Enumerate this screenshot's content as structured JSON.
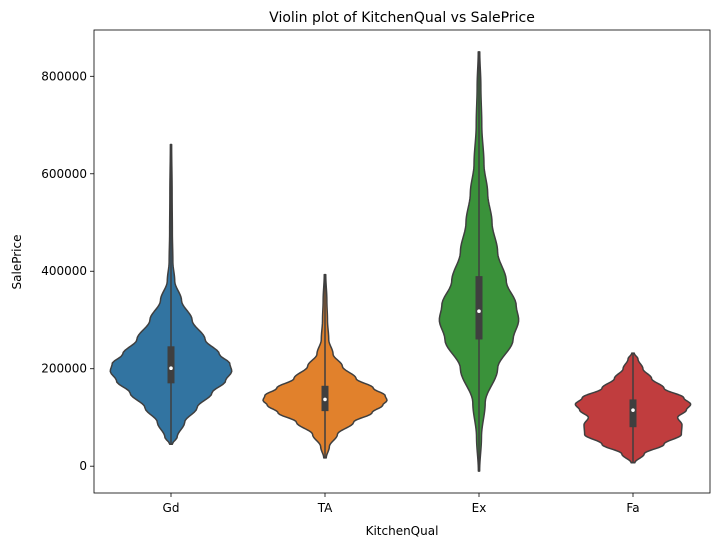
{
  "chart_data": {
    "type": "violin",
    "title": "Violin plot of KitchenQual vs SalePrice",
    "xlabel": "KitchenQual",
    "ylabel": "SalePrice",
    "categories": [
      "Gd",
      "TA",
      "Ex",
      "Fa"
    ],
    "colors": [
      "#3274a1",
      "#e1812c",
      "#3a923a",
      "#c03d3e"
    ],
    "ylim": [
      -55000,
      895000
    ],
    "yticks": [
      0,
      200000,
      400000,
      600000,
      800000
    ],
    "ytick_labels": [
      "0",
      "200000",
      "400000",
      "600000",
      "800000"
    ],
    "grid": false,
    "violins": [
      {
        "category": "Gd",
        "min": 45000,
        "q1": 170000,
        "median": 201000,
        "q3": 246000,
        "max": 660000,
        "profile": [
          [
            45000,
            0.02
          ],
          [
            60000,
            0.1
          ],
          [
            90000,
            0.22
          ],
          [
            120000,
            0.42
          ],
          [
            150000,
            0.66
          ],
          [
            175000,
            0.88
          ],
          [
            195000,
            0.98
          ],
          [
            210000,
            0.95
          ],
          [
            230000,
            0.78
          ],
          [
            260000,
            0.55
          ],
          [
            300000,
            0.34
          ],
          [
            340000,
            0.17
          ],
          [
            380000,
            0.06
          ],
          [
            420000,
            0.03
          ],
          [
            480000,
            0.022
          ],
          [
            560000,
            0.018
          ],
          [
            660000,
            0.01
          ]
        ]
      },
      {
        "category": "TA",
        "min": 17000,
        "q1": 113000,
        "median": 137000,
        "q3": 165000,
        "max": 393000,
        "profile": [
          [
            17000,
            0.02
          ],
          [
            40000,
            0.07
          ],
          [
            65000,
            0.2
          ],
          [
            90000,
            0.46
          ],
          [
            110000,
            0.76
          ],
          [
            125000,
            0.93
          ],
          [
            135000,
            1.0
          ],
          [
            145000,
            0.97
          ],
          [
            160000,
            0.78
          ],
          [
            180000,
            0.5
          ],
          [
            205000,
            0.28
          ],
          [
            230000,
            0.13
          ],
          [
            260000,
            0.06
          ],
          [
            300000,
            0.04
          ],
          [
            340000,
            0.03
          ],
          [
            393000,
            0.012
          ]
        ]
      },
      {
        "category": "Ex",
        "min": -10000,
        "q1": 260000,
        "median": 318000,
        "q3": 390000,
        "max": 850000,
        "profile": [
          [
            -10000,
            0.01
          ],
          [
            60000,
            0.04
          ],
          [
            130000,
            0.1
          ],
          [
            200000,
            0.3
          ],
          [
            260000,
            0.55
          ],
          [
            300000,
            0.64
          ],
          [
            330000,
            0.6
          ],
          [
            380000,
            0.44
          ],
          [
            440000,
            0.3
          ],
          [
            500000,
            0.21
          ],
          [
            560000,
            0.14
          ],
          [
            620000,
            0.08
          ],
          [
            700000,
            0.045
          ],
          [
            780000,
            0.03
          ],
          [
            850000,
            0.012
          ]
        ]
      },
      {
        "category": "Fa",
        "min": 7000,
        "q1": 80000,
        "median": 115000,
        "q3": 137000,
        "max": 232000,
        "profile": [
          [
            7000,
            0.03
          ],
          [
            25000,
            0.18
          ],
          [
            45000,
            0.5
          ],
          [
            65000,
            0.78
          ],
          [
            85000,
            0.79
          ],
          [
            100000,
            0.72
          ],
          [
            115000,
            0.86
          ],
          [
            127000,
            0.93
          ],
          [
            140000,
            0.82
          ],
          [
            160000,
            0.5
          ],
          [
            180000,
            0.3
          ],
          [
            200000,
            0.16
          ],
          [
            220000,
            0.08
          ],
          [
            232000,
            0.02
          ]
        ]
      }
    ]
  }
}
